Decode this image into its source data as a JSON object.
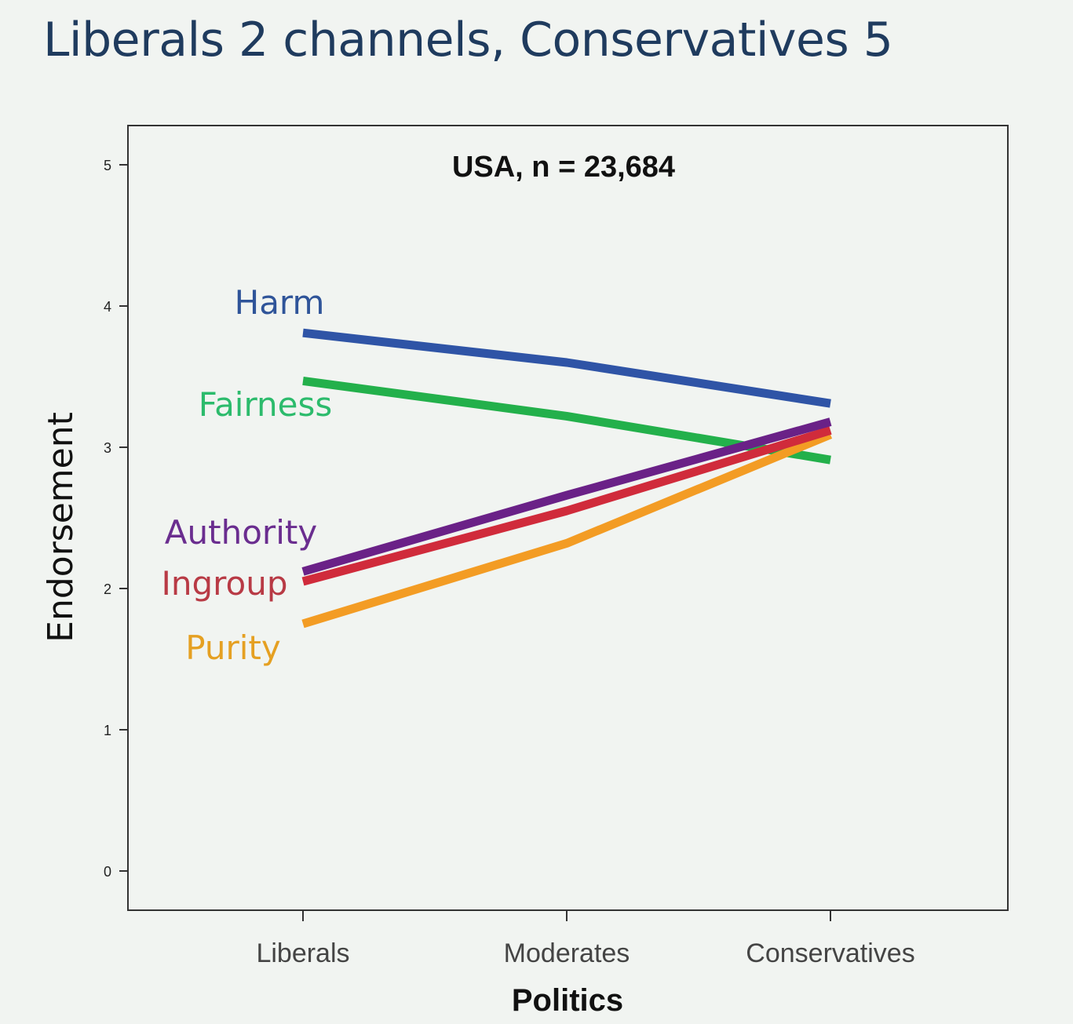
{
  "slide": {
    "title": "Liberals 2 channels, Conservatives 5"
  },
  "chart_data": {
    "type": "line",
    "title": "USA, n = 23,684",
    "xlabel": "Politics",
    "ylabel": "Endorsement",
    "categories": [
      "Liberals",
      "Moderates",
      "Conservatives"
    ],
    "ylim": [
      0,
      5.3
    ],
    "yticks": [
      0,
      1,
      2,
      3,
      4,
      5
    ],
    "grid": false,
    "legend": "direct-labels-left",
    "series": [
      {
        "name": "Harm",
        "color": "#2f54a6",
        "values": [
          3.81,
          3.6,
          3.31
        ]
      },
      {
        "name": "Fairness",
        "color": "#23b04b",
        "values": [
          3.47,
          3.22,
          2.91
        ]
      },
      {
        "name": "Authority",
        "color": "#6a2187",
        "values": [
          2.12,
          2.66,
          3.18
        ]
      },
      {
        "name": "Ingroup",
        "color": "#d02b3b",
        "values": [
          2.05,
          2.55,
          3.12
        ]
      },
      {
        "name": "Purity",
        "color": "#f39c24",
        "values": [
          1.75,
          2.32,
          3.09
        ]
      }
    ],
    "label_colors": {
      "Harm": "#2f5499",
      "Fairness": "#2cbb6c",
      "Authority": "#6a2d8f",
      "Ingroup": "#b83a45",
      "Purity": "#e5a022"
    }
  }
}
